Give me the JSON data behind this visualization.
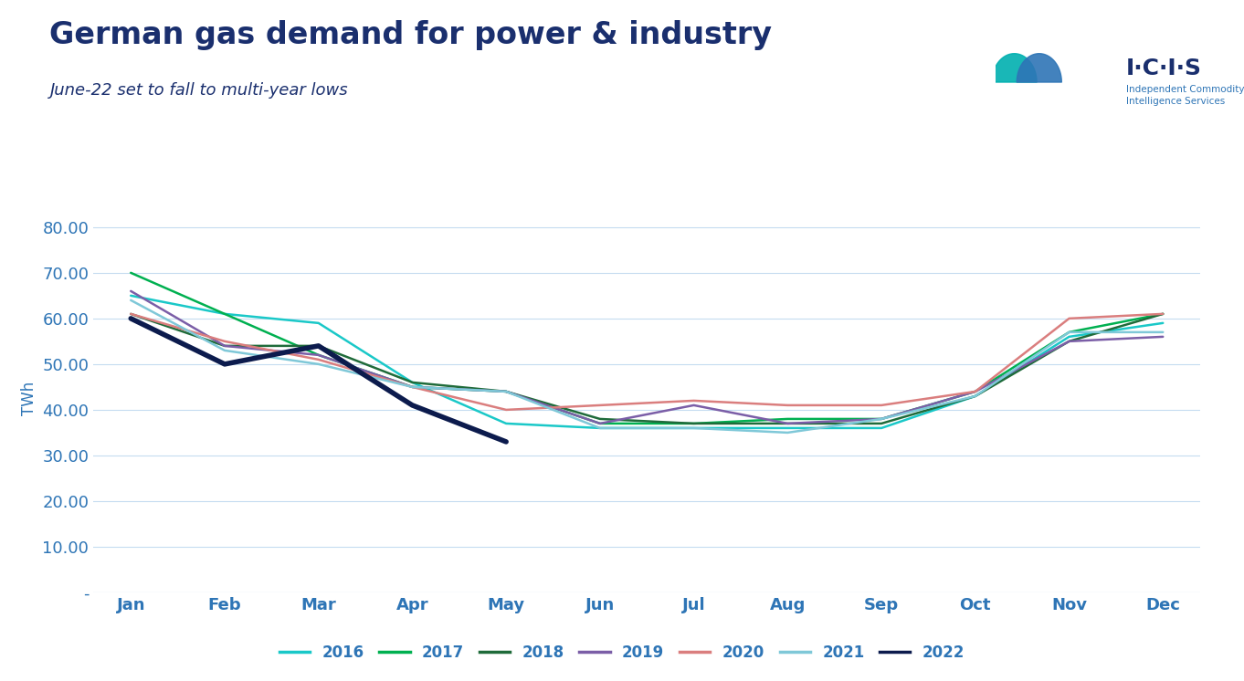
{
  "title": "German gas demand for power & industry",
  "subtitle": "June-22 set to fall to multi-year lows",
  "ylabel": "TWh",
  "months": [
    "Jan",
    "Feb",
    "Mar",
    "Apr",
    "May",
    "Jun",
    "Jul",
    "Aug",
    "Sep",
    "Oct",
    "Nov",
    "Dec"
  ],
  "ylim": [
    0,
    85
  ],
  "yticks": [
    0,
    10,
    20,
    30,
    40,
    50,
    60,
    70,
    80
  ],
  "ytick_labels": [
    "-",
    "10.00",
    "20.00",
    "30.00",
    "40.00",
    "50.00",
    "60.00",
    "70.00",
    "80.00"
  ],
  "series": {
    "2016": {
      "color": "#1AC8C8",
      "linewidth": 1.8,
      "data": [
        65,
        61,
        59,
        46,
        37,
        36,
        36,
        36,
        36,
        43,
        56,
        59
      ]
    },
    "2017": {
      "color": "#00B050",
      "linewidth": 1.8,
      "data": [
        70,
        61,
        52,
        45,
        44,
        37,
        37,
        38,
        38,
        44,
        57,
        61
      ]
    },
    "2018": {
      "color": "#1F6B3A",
      "linewidth": 1.8,
      "data": [
        61,
        54,
        54,
        46,
        44,
        38,
        37,
        37,
        37,
        43,
        55,
        61
      ]
    },
    "2019": {
      "color": "#7B5EA7",
      "linewidth": 1.8,
      "data": [
        66,
        54,
        52,
        45,
        44,
        37,
        41,
        37,
        38,
        44,
        55,
        56
      ]
    },
    "2020": {
      "color": "#DA7E7E",
      "linewidth": 1.8,
      "data": [
        61,
        55,
        51,
        45,
        40,
        41,
        42,
        41,
        41,
        44,
        60,
        61
      ]
    },
    "2021": {
      "color": "#7FC8D8",
      "linewidth": 1.8,
      "data": [
        64,
        53,
        50,
        45,
        44,
        36,
        36,
        35,
        38,
        43,
        57,
        57
      ]
    },
    "2022": {
      "color": "#0C1B4D",
      "linewidth": 4.0,
      "data": [
        60,
        50,
        54,
        41,
        33,
        null,
        null,
        null,
        null,
        null,
        null,
        null
      ]
    }
  },
  "background_color": "#FFFFFF",
  "grid_color": "#C5DCF0",
  "title_color": "#1A2F6E",
  "subtitle_color": "#1A2F6E",
  "axis_tick_color": "#2E75B6",
  "title_fontsize": 24,
  "subtitle_fontsize": 13,
  "tick_fontsize": 13,
  "ylabel_fontsize": 12,
  "legend_fontsize": 12
}
